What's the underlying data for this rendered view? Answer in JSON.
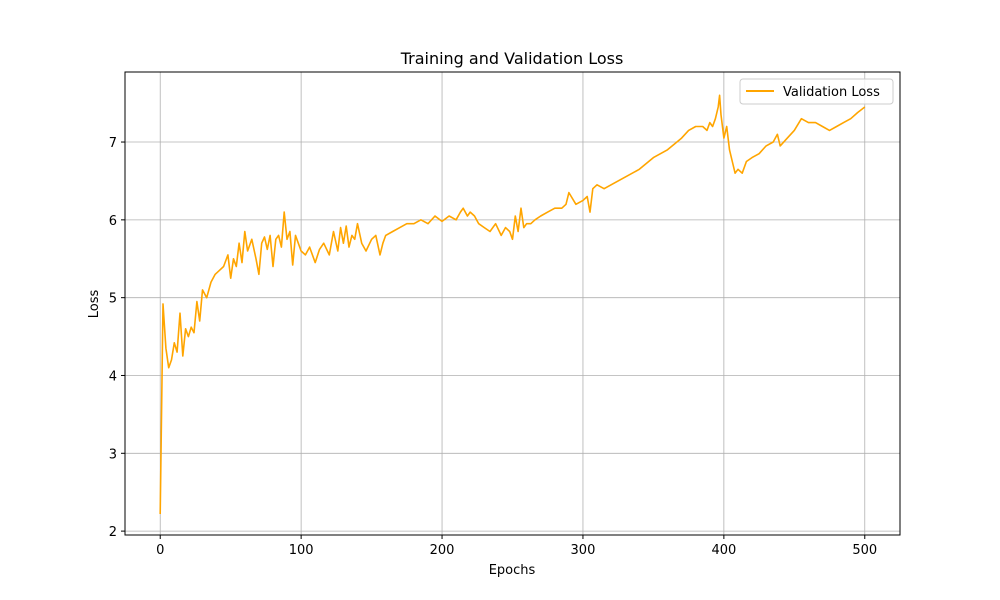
{
  "chart_data": {
    "type": "line",
    "title": "Training and Validation Loss",
    "xlabel": "Epochs",
    "ylabel": "Loss",
    "xlim": [
      -25,
      525
    ],
    "ylim": [
      1.95,
      7.9
    ],
    "xticks": [
      0,
      100,
      200,
      300,
      400,
      500
    ],
    "yticks": [
      2,
      3,
      4,
      5,
      6,
      7
    ],
    "grid": true,
    "legend_position": "top-right",
    "series": [
      {
        "name": "Validation Loss",
        "color": "#ffa500",
        "x": [
          0,
          2,
          4,
          6,
          8,
          10,
          12,
          14,
          16,
          18,
          20,
          22,
          24,
          26,
          28,
          30,
          33,
          36,
          39,
          42,
          45,
          48,
          50,
          52,
          54,
          56,
          58,
          60,
          62,
          65,
          68,
          70,
          72,
          74,
          76,
          78,
          80,
          82,
          84,
          86,
          88,
          90,
          92,
          94,
          96,
          98,
          100,
          103,
          106,
          110,
          113,
          116,
          120,
          123,
          126,
          128,
          130,
          132,
          134,
          136,
          138,
          140,
          143,
          146,
          150,
          153,
          156,
          158,
          160,
          165,
          170,
          175,
          180,
          185,
          190,
          195,
          200,
          205,
          210,
          213,
          215,
          218,
          220,
          223,
          226,
          230,
          234,
          238,
          242,
          245,
          248,
          250,
          252,
          254,
          256,
          258,
          260,
          263,
          266,
          270,
          275,
          280,
          285,
          288,
          290,
          295,
          300,
          303,
          305,
          307,
          310,
          315,
          320,
          330,
          340,
          350,
          360,
          370,
          375,
          380,
          385,
          388,
          390,
          392,
          394,
          396,
          397,
          398,
          400,
          402,
          404,
          406,
          408,
          410,
          413,
          416,
          420,
          425,
          430,
          435,
          438,
          440,
          445,
          450,
          455,
          460,
          465,
          470,
          475,
          480,
          485,
          490,
          495,
          500
        ],
        "values": [
          2.22,
          4.92,
          4.35,
          4.1,
          4.2,
          4.42,
          4.3,
          4.8,
          4.25,
          4.6,
          4.5,
          4.62,
          4.55,
          4.95,
          4.7,
          5.1,
          5.0,
          5.2,
          5.3,
          5.35,
          5.4,
          5.55,
          5.25,
          5.5,
          5.4,
          5.7,
          5.45,
          5.85,
          5.6,
          5.75,
          5.5,
          5.3,
          5.7,
          5.78,
          5.62,
          5.8,
          5.4,
          5.75,
          5.8,
          5.65,
          6.1,
          5.75,
          5.85,
          5.42,
          5.8,
          5.7,
          5.6,
          5.55,
          5.65,
          5.45,
          5.62,
          5.7,
          5.55,
          5.85,
          5.6,
          5.9,
          5.7,
          5.92,
          5.65,
          5.8,
          5.75,
          5.95,
          5.7,
          5.6,
          5.75,
          5.8,
          5.55,
          5.7,
          5.8,
          5.85,
          5.9,
          5.95,
          5.95,
          6.0,
          5.95,
          6.05,
          5.98,
          6.05,
          6.0,
          6.1,
          6.15,
          6.05,
          6.1,
          6.05,
          5.95,
          5.9,
          5.85,
          5.95,
          5.8,
          5.9,
          5.85,
          5.75,
          6.05,
          5.85,
          6.15,
          5.9,
          5.95,
          5.95,
          6.0,
          6.05,
          6.1,
          6.15,
          6.15,
          6.2,
          6.35,
          6.2,
          6.25,
          6.3,
          6.1,
          6.4,
          6.45,
          6.4,
          6.45,
          6.55,
          6.65,
          6.8,
          6.9,
          7.05,
          7.15,
          7.2,
          7.2,
          7.15,
          7.25,
          7.2,
          7.3,
          7.45,
          7.6,
          7.35,
          7.05,
          7.2,
          6.9,
          6.75,
          6.6,
          6.65,
          6.6,
          6.75,
          6.8,
          6.85,
          6.95,
          7.0,
          7.1,
          6.95,
          7.05,
          7.15,
          7.3,
          7.25,
          7.25,
          7.2,
          7.15,
          7.2,
          7.25,
          7.3,
          7.38,
          7.45
        ]
      }
    ]
  },
  "legend": {
    "label": "Validation Loss"
  }
}
